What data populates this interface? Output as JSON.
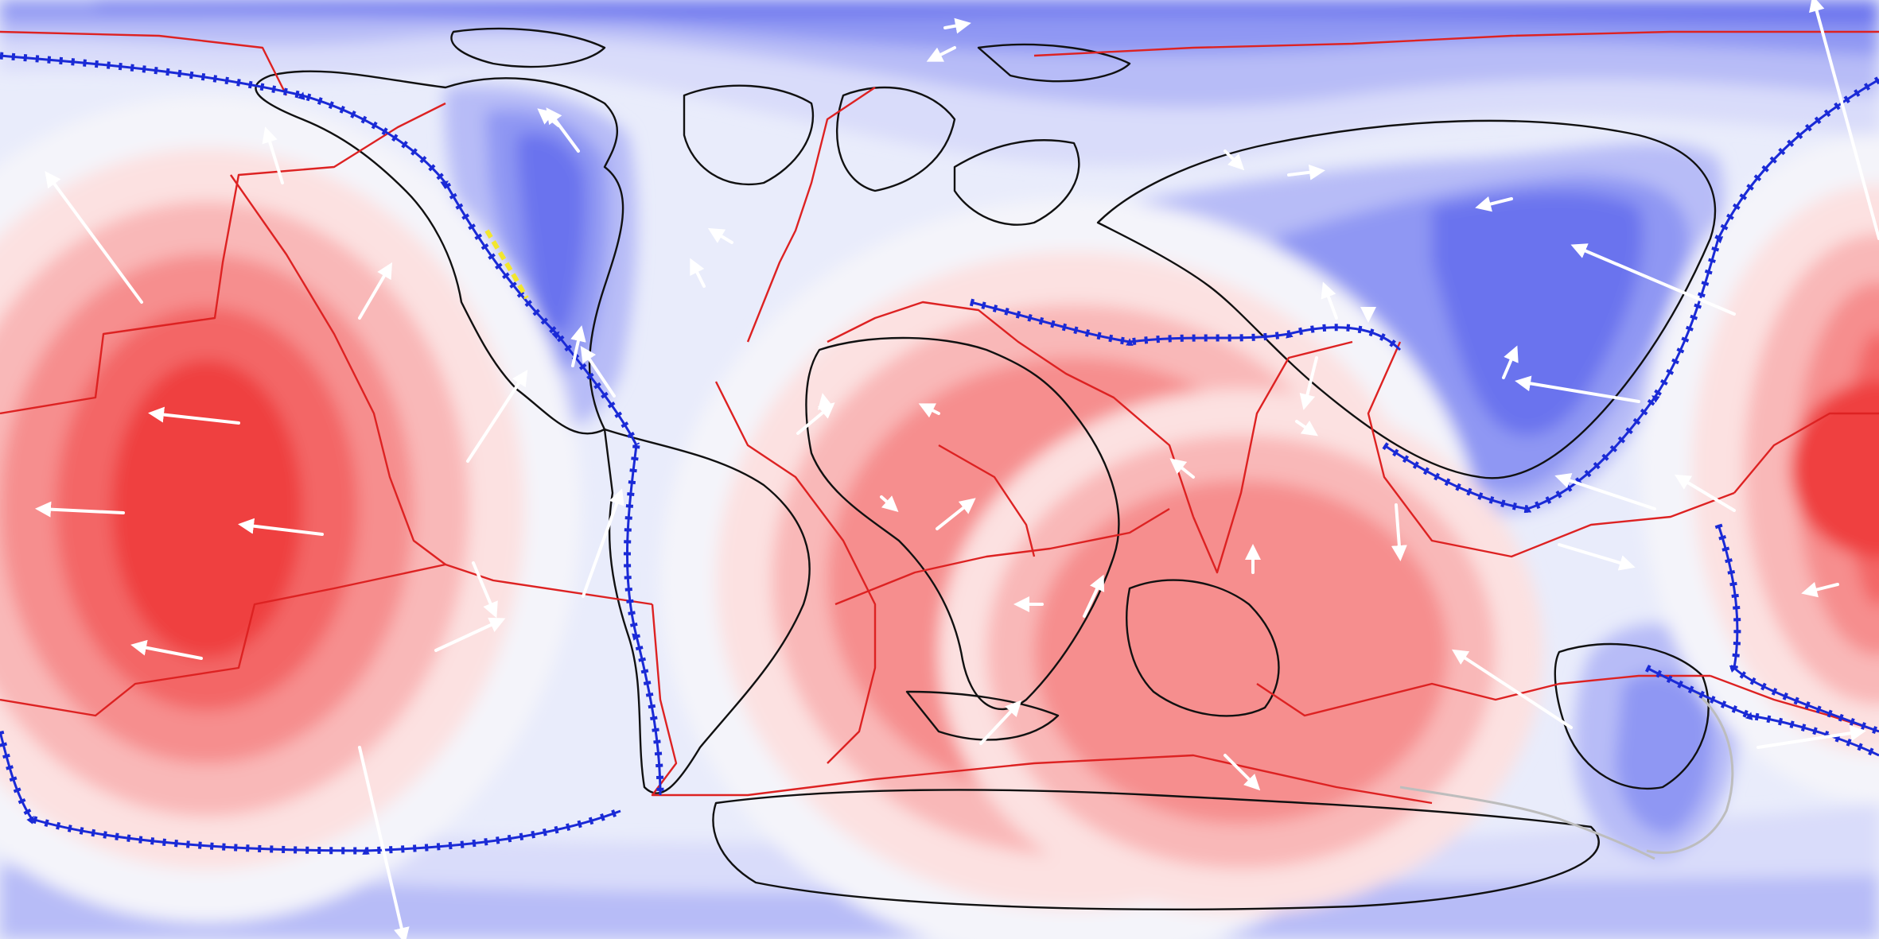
{
  "map": {
    "projection": "equirectangular",
    "ocean_color": "#e9ecfb",
    "coast_color": "#111111",
    "plate_boundary_color": "#dd2222",
    "subduction_color": "#1a2ad6",
    "motion_arrow_color": "#ffffff",
    "highlight_color": "#f2e62e",
    "gray_line_color": "#bdbdbd",
    "color_ramp": [
      "#ef3f3f",
      "#f36666",
      "#f68e8e",
      "#f9b8b8",
      "#fce1e1",
      "#f4f4fa",
      "#d9dcfa",
      "#b7bcf7",
      "#8f97f3",
      "#6a73ee",
      "#4b55e6"
    ]
  }
}
